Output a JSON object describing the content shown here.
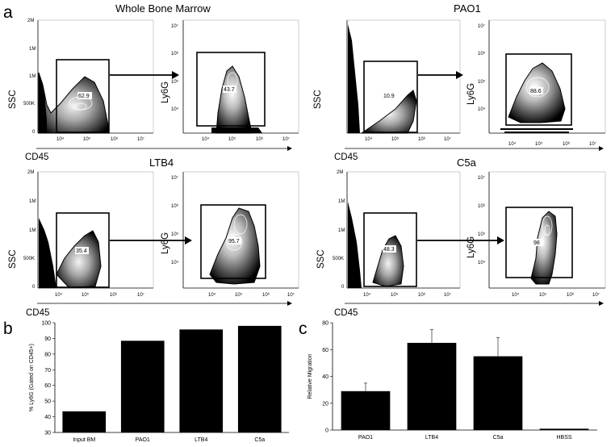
{
  "panels": {
    "a": {
      "letter": "a",
      "axis_x_label": "CD45",
      "axis_y_label_ssc": "SSC",
      "axis_y_label_ly6g": "Ly6G",
      "ssc_ticks": [
        "2M",
        "1M",
        "1M",
        "500K",
        "0"
      ],
      "cd45_ticks": [
        "10⁴",
        "10⁵",
        "10⁶",
        "10⁷"
      ],
      "ly6g_ticks": [
        "10⁷",
        "10⁶",
        "10⁵",
        "10⁴"
      ],
      "conditions": [
        {
          "title": "Whole Bone Marrow",
          "cd45_gate": "62.9",
          "ly6g_gate": "43.7"
        },
        {
          "title": "PAO1",
          "cd45_gate": "10.9",
          "ly6g_gate": "88.6"
        },
        {
          "title": "LTB4",
          "cd45_gate": "35.4",
          "ly6g_gate": "95.7"
        },
        {
          "title": "C5a",
          "cd45_gate": "48.3",
          "ly6g_gate": "98"
        }
      ]
    },
    "b": {
      "letter": "b"
    },
    "c": {
      "letter": "c"
    }
  },
  "chart_data": [
    {
      "type": "bar",
      "panel": "b",
      "categories": [
        "Input BM",
        "PAO1",
        "LTB4",
        "C5a"
      ],
      "values": [
        43.5,
        88.5,
        95.7,
        98
      ],
      "ylabel": "% Ly6G (Gated on CD45+)",
      "ylim": [
        30,
        100
      ],
      "yticks": [
        30,
        40,
        50,
        60,
        70,
        80,
        90,
        100
      ],
      "bar_color": "#000000",
      "grid": false
    },
    {
      "type": "bar",
      "panel": "c",
      "categories": [
        "PAO1",
        "LTB4",
        "C5a",
        "HBSS"
      ],
      "values": [
        29,
        65,
        55,
        1
      ],
      "errors": [
        6,
        10,
        14,
        0
      ],
      "ylabel": "Relative Migration",
      "ylim": [
        0,
        80
      ],
      "yticks": [
        0,
        20,
        40,
        60,
        80
      ],
      "bar_color": "#000000",
      "grid": false
    }
  ]
}
